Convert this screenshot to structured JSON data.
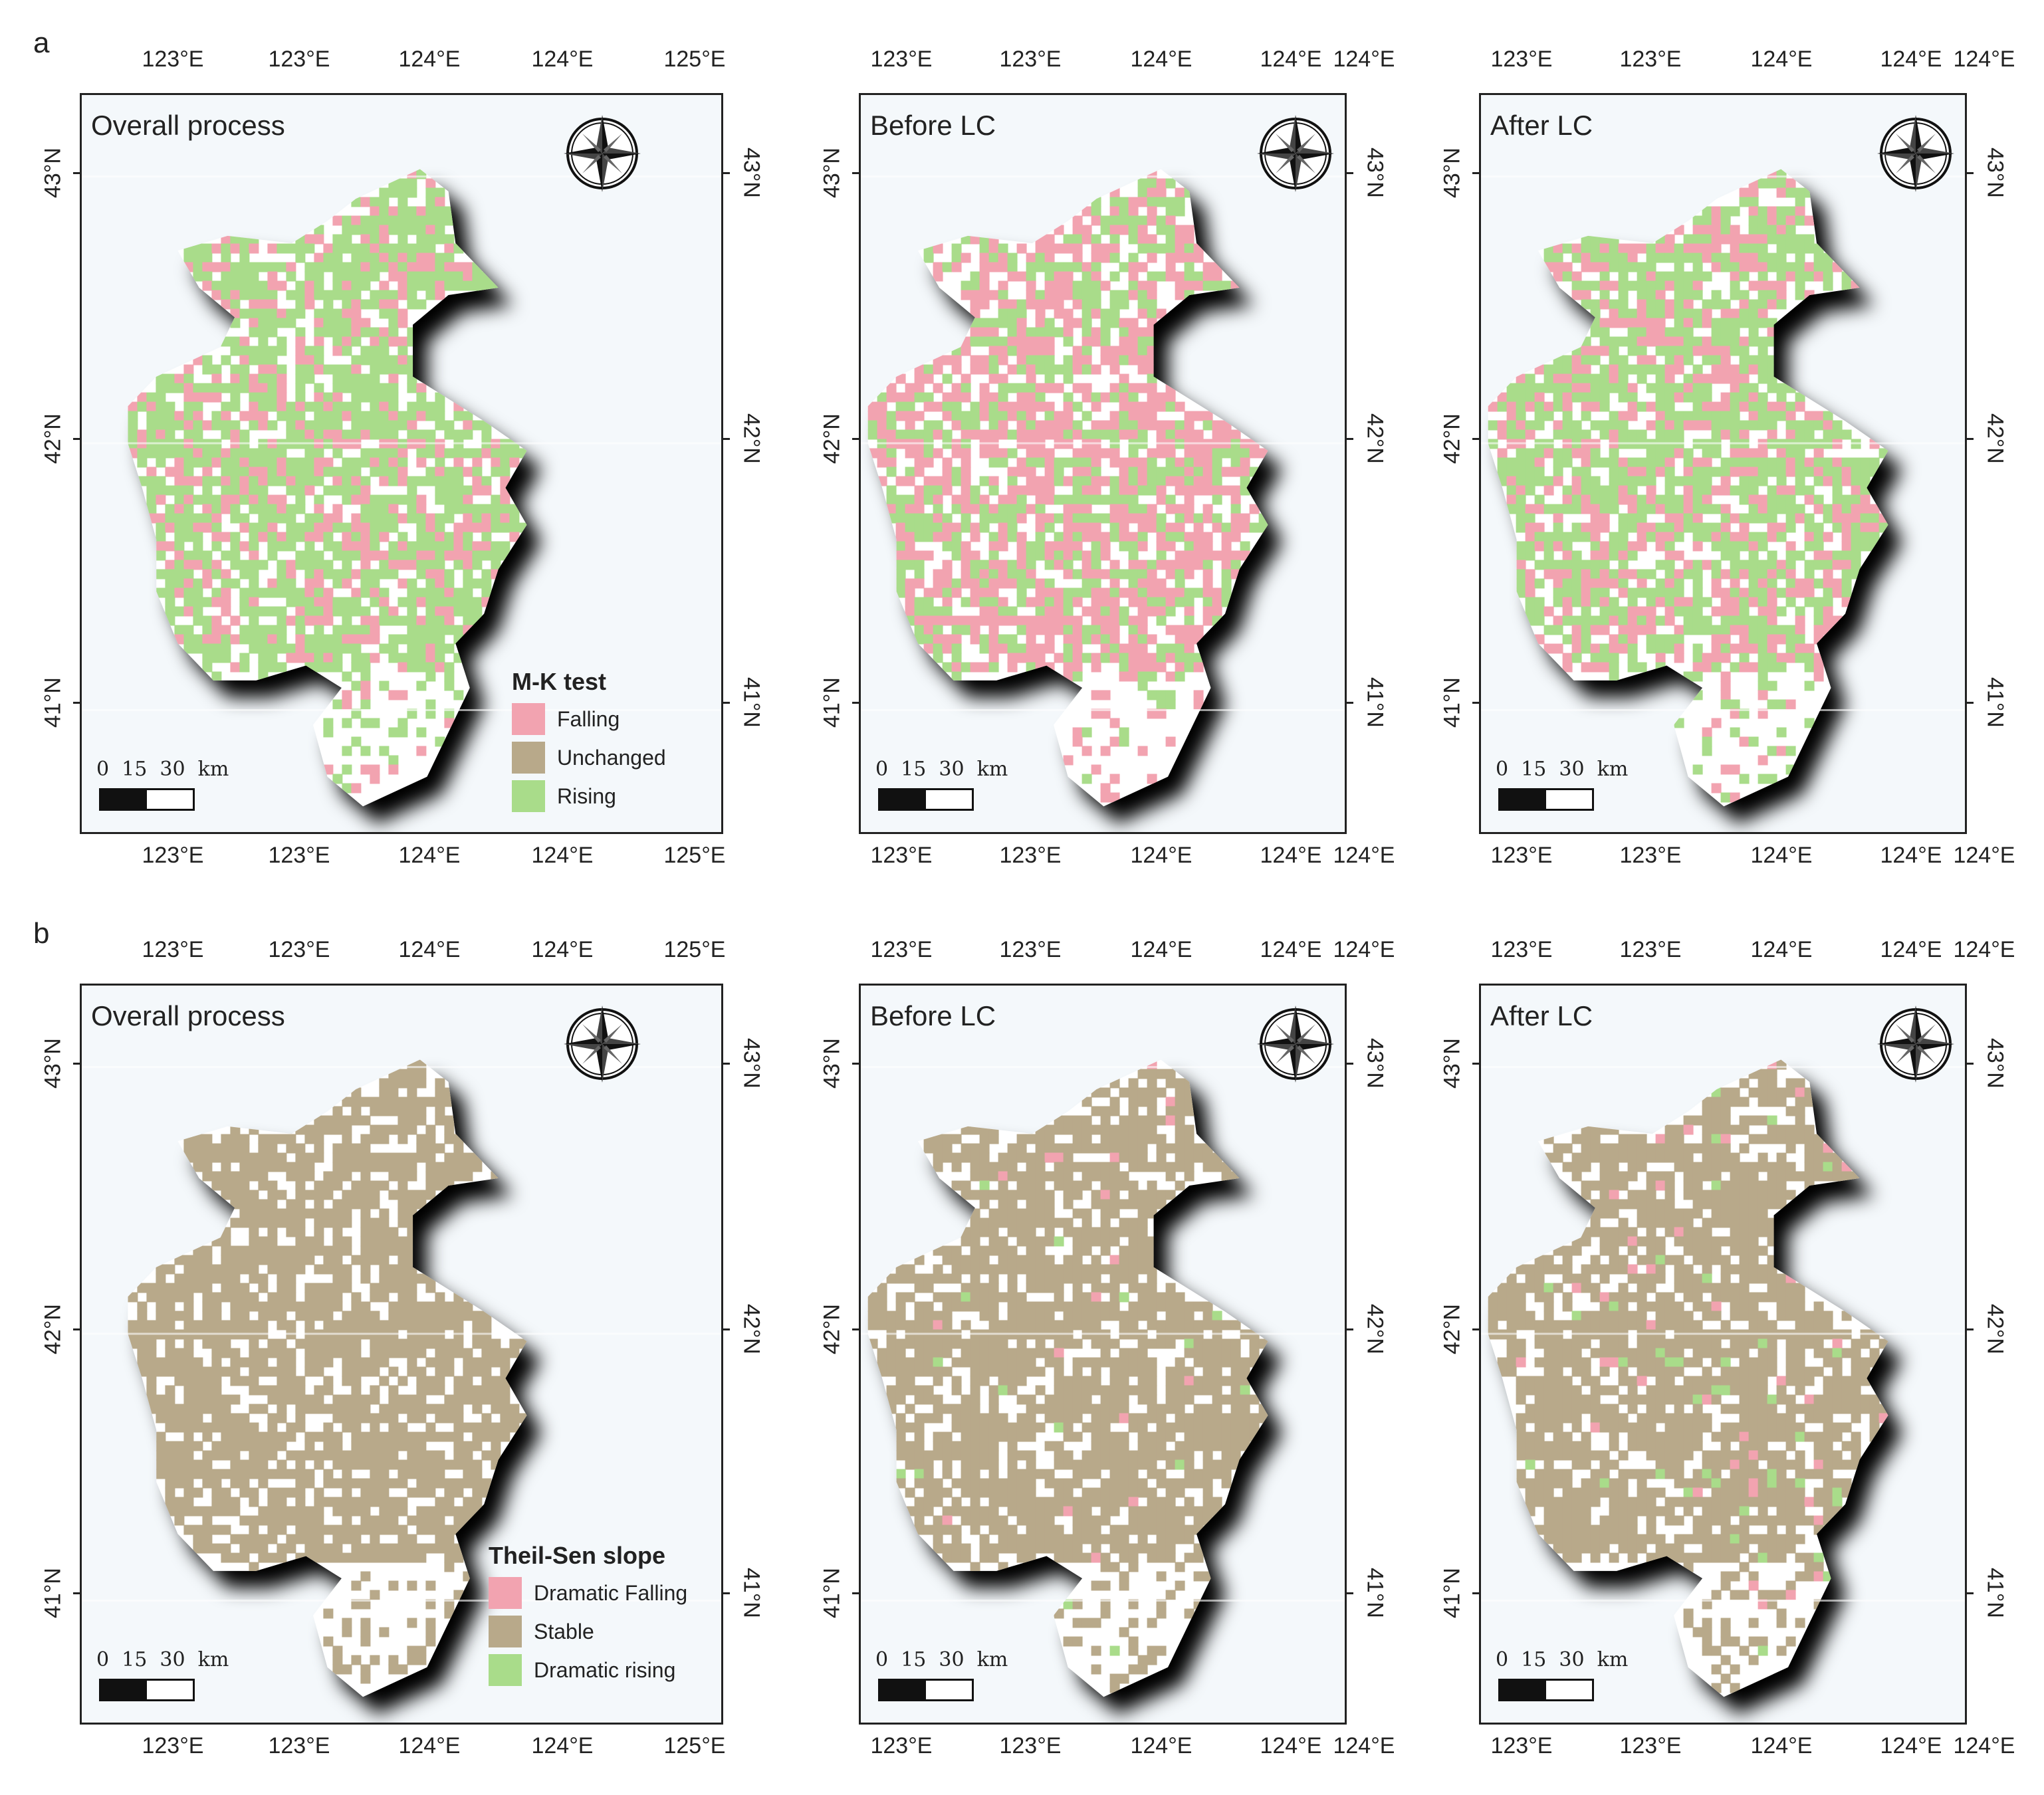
{
  "figure": {
    "rows": [
      {
        "letter": "a",
        "legend": {
          "title": "M-K test",
          "items": [
            {
              "label": "Falling",
              "color": "#f2a3b0"
            },
            {
              "label": "Unchanged",
              "color": "#b8a98a"
            },
            {
              "label": "Rising",
              "color": "#a9dc8a"
            }
          ]
        },
        "panels": [
          {
            "title": "Overall process",
            "top_ticks": [
              "123°E",
              "123°E",
              "124°E",
              "124°E",
              "125°E"
            ],
            "bottom_ticks": [
              "123°E",
              "123°E",
              "124°E",
              "124°E",
              "125°E"
            ],
            "lat_ticks": [
              "43°N",
              "42°N",
              "41°N"
            ],
            "scale": "0  15  30  km",
            "mix": {
              "falling": 0.22,
              "unchanged": 0.0,
              "rising": 0.55
            }
          },
          {
            "title": "Before LC",
            "top_ticks": [
              "123°E",
              "123°E",
              "124°E",
              "124°E",
              "124°E"
            ],
            "bottom_ticks": [
              "123°E",
              "123°E",
              "124°E",
              "124°E",
              "124°E"
            ],
            "lat_ticks": [
              "43°N",
              "42°N",
              "41°N"
            ],
            "scale": "0  15  30  km",
            "mix": {
              "falling": 0.45,
              "unchanged": 0.0,
              "rising": 0.3
            }
          },
          {
            "title": "After LC",
            "top_ticks": [
              "123°E",
              "123°E",
              "124°E",
              "124°E",
              "124°E"
            ],
            "bottom_ticks": [
              "123°E",
              "123°E",
              "124°E",
              "124°E",
              "124°E"
            ],
            "lat_ticks": [
              "43°N",
              "42°N",
              "41°N"
            ],
            "scale": "0  15  30  km",
            "mix": {
              "falling": 0.28,
              "unchanged": 0.0,
              "rising": 0.5
            }
          }
        ]
      },
      {
        "letter": "b",
        "legend": {
          "title": "Theil-Sen slope",
          "items": [
            {
              "label": "Dramatic Falling",
              "color": "#f2a3b0"
            },
            {
              "label": "Stable",
              "color": "#b8a98a"
            },
            {
              "label": "Dramatic rising",
              "color": "#a9dc8a"
            }
          ]
        },
        "panels": [
          {
            "title": "Overall process",
            "top_ticks": [
              "123°E",
              "123°E",
              "124°E",
              "124°E",
              "125°E"
            ],
            "bottom_ticks": [
              "123°E",
              "123°E",
              "124°E",
              "124°E",
              "125°E"
            ],
            "lat_ticks": [
              "43°N",
              "42°N",
              "41°N"
            ],
            "scale": "0  15  30  km",
            "mix": {
              "falling": 0.0,
              "unchanged": 0.75,
              "rising": 0.0
            }
          },
          {
            "title": "Before LC",
            "top_ticks": [
              "123°E",
              "123°E",
              "124°E",
              "124°E",
              "124°E"
            ],
            "bottom_ticks": [
              "123°E",
              "123°E",
              "124°E",
              "124°E",
              "124°E"
            ],
            "lat_ticks": [
              "43°N",
              "42°N",
              "41°N"
            ],
            "scale": "0  15  30  km",
            "mix": {
              "falling": 0.01,
              "unchanged": 0.74,
              "rising": 0.01
            }
          },
          {
            "title": "After LC",
            "top_ticks": [
              "123°E",
              "123°E",
              "124°E",
              "124°E",
              "124°E"
            ],
            "bottom_ticks": [
              "123°E",
              "123°E",
              "124°E",
              "124°E",
              "124°E"
            ],
            "lat_ticks": [
              "43°N",
              "42°N",
              "41°N"
            ],
            "scale": "0  15  30  km",
            "mix": {
              "falling": 0.02,
              "unchanged": 0.72,
              "rising": 0.02
            }
          }
        ]
      }
    ],
    "icons": {
      "compass": "compass-rose-icon"
    },
    "colors": {
      "background": "#f4f8fb",
      "nodata": "#ffffff"
    }
  }
}
